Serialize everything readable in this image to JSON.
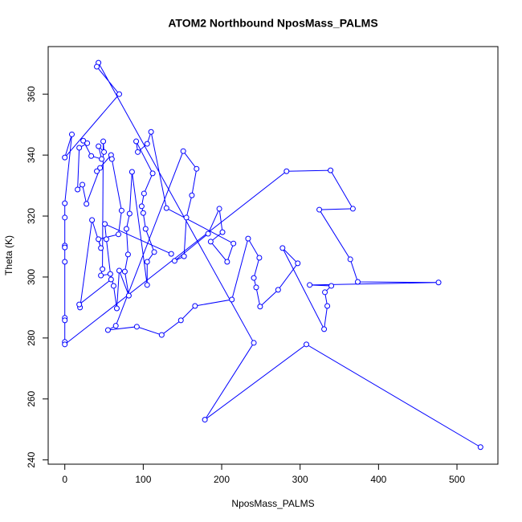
{
  "chart_data": {
    "type": "line",
    "title": "ATOM2 Northbound NposMass_PALMS",
    "x_label": "NposMass_PALMS",
    "y_label": "Theta (K)",
    "points": true,
    "color": "#0000ff",
    "xlim": [
      -21.2,
      552.2
    ],
    "ylim": [
      238.6,
      375.6
    ],
    "xticks": [
      0,
      100,
      200,
      300,
      400,
      500
    ],
    "yticks": [
      240,
      260,
      280,
      300,
      320,
      340,
      360
    ],
    "x": [
      530,
      308,
      178.6,
      241,
      42.9,
      40.8,
      69.4,
      0,
      9,
      0,
      0,
      0,
      0,
      0,
      0,
      0,
      0,
      0,
      282.7,
      338.8,
      367.3,
      324.5,
      364,
      373.5,
      476.5,
      312.2,
      339.8,
      331.6,
      334.7,
      330.6,
      277.6,
      297,
      272,
      249,
      244,
      241,
      248,
      233.7,
      213,
      166,
      148,
      123.5,
      91.8,
      55,
      65,
      151,
      168,
      162,
      155,
      152,
      140,
      182.7,
      197,
      201,
      186,
      207,
      215,
      129.6,
      110,
      105,
      93,
      91,
      112,
      101,
      98,
      100,
      103,
      114,
      105,
      105,
      85.7,
      82.6,
      78.6,
      80.6,
      76.5,
      81.6,
      69.4,
      66.3,
      62.2,
      58,
      46,
      48,
      49,
      50,
      43,
      47,
      33.7,
      23.5,
      28.6,
      18.4,
      16.3,
      22.4,
      27.6,
      45,
      40.8,
      59,
      60,
      72.4,
      68.4,
      42.9,
      46,
      34.7,
      19.4,
      18.4,
      59,
      53,
      51,
      135.7
    ],
    "y": [
      244.2,
      277.9,
      253.2,
      278.4,
      370.3,
      369,
      360,
      339.2,
      346.8,
      324.2,
      319.5,
      310.3,
      309.7,
      305,
      286.6,
      285.8,
      278.7,
      277.9,
      334.7,
      335,
      322.4,
      322.1,
      305.8,
      298.4,
      298.2,
      297.4,
      297.1,
      295,
      290.5,
      282.9,
      309.5,
      304.5,
      295.8,
      290.3,
      296.6,
      299.7,
      306.3,
      312.6,
      292.6,
      290.5,
      285.8,
      281,
      283.7,
      282.6,
      284,
      341.3,
      335.5,
      326.8,
      319.5,
      306.8,
      305.3,
      314.2,
      322.4,
      314.7,
      311.6,
      305,
      311,
      322.6,
      347.6,
      343.7,
      341,
      344.5,
      334,
      327.4,
      323.2,
      321,
      315.8,
      308.2,
      305,
      297.4,
      334.5,
      320.8,
      315.8,
      307.4,
      301.8,
      293.9,
      302.1,
      289.7,
      297.1,
      301,
      300.5,
      302.6,
      344.5,
      341,
      342.9,
      338.7,
      339.7,
      344.7,
      343.9,
      342.4,
      328.7,
      330.3,
      324,
      335.8,
      334.7,
      340,
      338.7,
      321.8,
      314,
      312.4,
      309.5,
      318.7,
      290,
      291,
      299.2,
      312.4,
      317.4,
      307.6
    ]
  }
}
